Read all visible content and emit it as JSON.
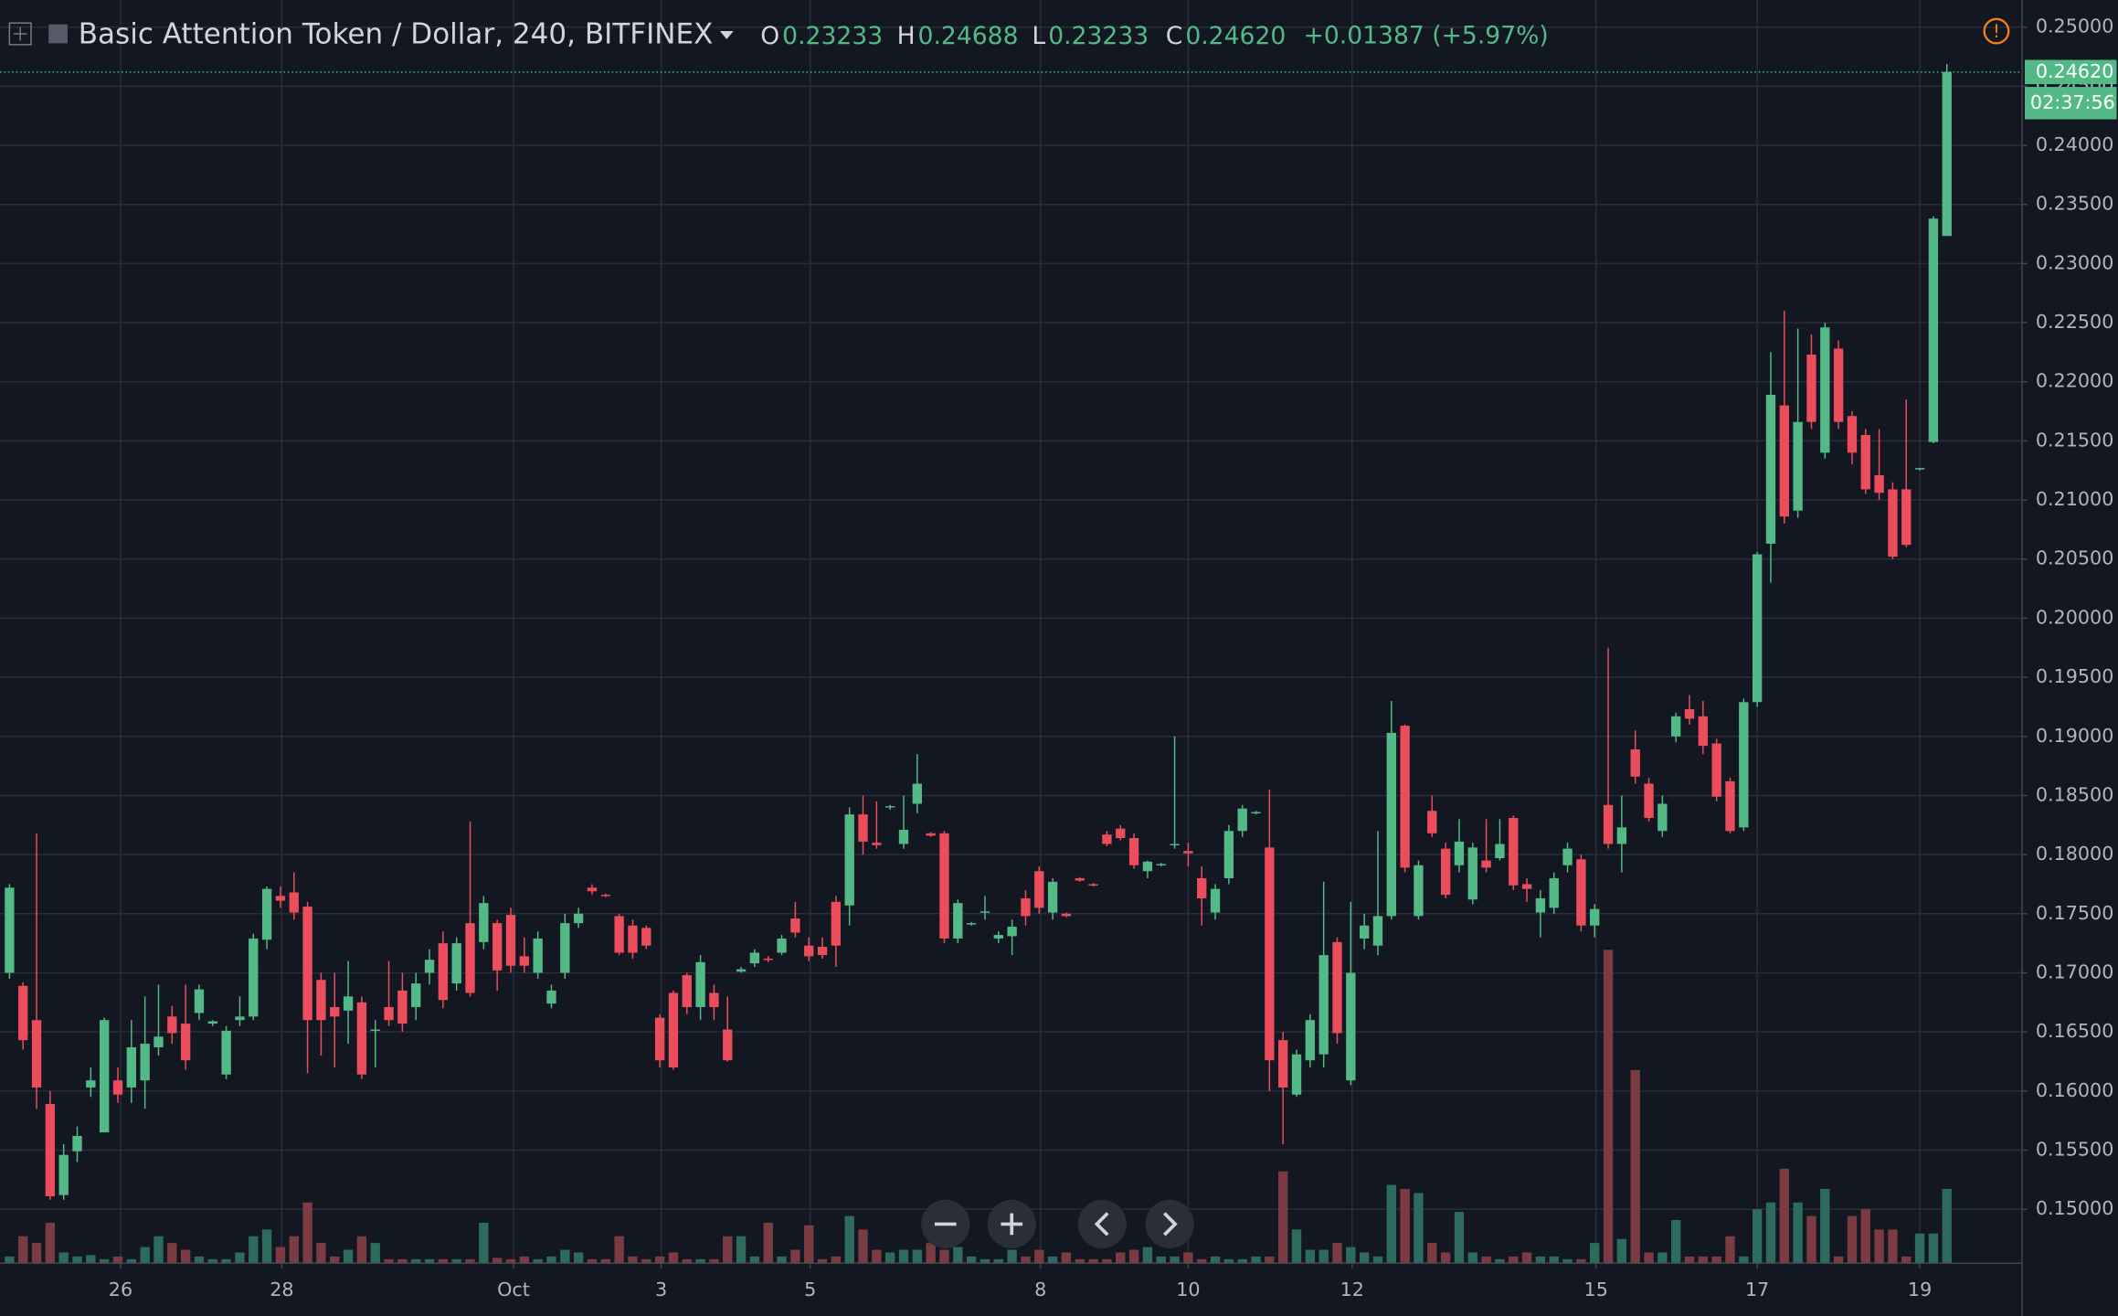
{
  "chart_data": {
    "type": "candlestick",
    "title": "Basic Attention Token / Dollar, 240, BITFINEX",
    "ohlc_legend": [
      {
        "key": "O",
        "value": "0.23233"
      },
      {
        "key": "H",
        "value": "0.24688"
      },
      {
        "key": "L",
        "value": "0.23233"
      },
      {
        "key": "C",
        "value": "0.24620"
      }
    ],
    "change": "+0.01387 (+5.97%)",
    "open": [
      0.17,
      0.1689,
      0.166,
      0.1589,
      0.1512,
      0.1549,
      0.1603,
      0.1565,
      0.1609,
      0.1603,
      0.1609,
      0.1637,
      0.1663,
      0.1657,
      0.1666,
      0.1657,
      0.1614,
      0.166,
      0.1663,
      0.1728,
      0.1765,
      0.1768,
      0.1756,
      0.1694,
      0.1671,
      0.1668,
      0.1675,
      0.1651,
      0.1671,
      0.1685,
      0.1671,
      0.17,
      0.1725,
      0.1691,
      0.1742,
      0.1726,
      0.1742,
      0.1749,
      0.1714,
      0.17,
      0.1674,
      0.17,
      0.1742,
      0.1772,
      0.1766,
      0.1748,
      0.174,
      0.1738,
      0.1662,
      0.1683,
      0.1698,
      0.1671,
      0.1683,
      0.1652,
      0.1701,
      0.1708,
      0.1712,
      0.1717,
      0.1746,
      0.1723,
      0.1722,
      0.176,
      0.1757,
      0.1834,
      0.181,
      0.184,
      0.1809,
      0.1843,
      0.1818,
      0.1818,
      0.1729,
      0.1741,
      0.1751,
      0.1729,
      0.1731,
      0.1763,
      0.1786,
      0.1751,
      0.175,
      0.178,
      0.1775,
      0.1817,
      0.1822,
      0.1814,
      0.1786,
      0.1791,
      0.1808,
      0.1803,
      0.178,
      0.1751,
      0.178,
      0.182,
      0.1835,
      0.1806,
      0.1643,
      0.1597,
      0.1626,
      0.1631,
      0.1726,
      0.1609,
      0.1729,
      0.1723,
      0.1748,
      0.1909,
      0.1748,
      0.1837,
      0.1805,
      0.1791,
      0.1762,
      0.1795,
      0.1797,
      0.1831,
      0.1775,
      0.1751,
      0.1755,
      0.1791,
      0.1796,
      0.174,
      0.1842,
      0.1809,
      0.1889,
      0.186,
      0.182,
      0.19,
      0.1923,
      0.1917,
      0.1894,
      0.1862,
      0.1823,
      0.1929,
      0.2063,
      0.218,
      0.2091,
      0.2223,
      0.214,
      0.2228,
      0.2171,
      0.2155,
      0.2121,
      0.2109,
      0.2109,
      0.2126,
      0.2149,
      0.23233
    ],
    "high": [
      0.1775,
      0.1692,
      0.1818,
      0.16,
      0.1555,
      0.157,
      0.162,
      0.1662,
      0.162,
      0.166,
      0.168,
      0.169,
      0.1672,
      0.169,
      0.169,
      0.166,
      0.1655,
      0.168,
      0.1733,
      0.1773,
      0.1773,
      0.1785,
      0.176,
      0.17,
      0.17,
      0.171,
      0.168,
      0.166,
      0.171,
      0.17,
      0.17,
      0.172,
      0.1735,
      0.173,
      0.1828,
      0.1765,
      0.1745,
      0.1755,
      0.173,
      0.1735,
      0.169,
      0.175,
      0.1755,
      0.1775,
      0.1767,
      0.175,
      0.1745,
      0.174,
      0.1665,
      0.1685,
      0.17,
      0.1715,
      0.169,
      0.168,
      0.1705,
      0.172,
      0.1714,
      0.1732,
      0.176,
      0.173,
      0.173,
      0.1765,
      0.184,
      0.185,
      0.1845,
      0.1842,
      0.185,
      0.1885,
      0.1819,
      0.182,
      0.1762,
      0.1743,
      0.1765,
      0.1735,
      0.1745,
      0.177,
      0.179,
      0.178,
      0.1751,
      0.1781,
      0.1776,
      0.182,
      0.1825,
      0.1818,
      0.1795,
      0.1793,
      0.19,
      0.181,
      0.179,
      0.1775,
      0.1825,
      0.1842,
      0.1837,
      0.1855,
      0.165,
      0.1635,
      0.1665,
      0.1777,
      0.173,
      0.176,
      0.175,
      0.182,
      0.193,
      0.191,
      0.1795,
      0.185,
      0.181,
      0.183,
      0.181,
      0.183,
      0.183,
      0.1833,
      0.178,
      0.177,
      0.1785,
      0.181,
      0.18,
      0.1758,
      0.1975,
      0.185,
      0.1905,
      0.1865,
      0.185,
      0.192,
      0.1935,
      0.193,
      0.1898,
      0.1865,
      0.1932,
      0.2056,
      0.2225,
      0.226,
      0.2245,
      0.224,
      0.225,
      0.2235,
      0.2175,
      0.216,
      0.216,
      0.2115,
      0.2185,
      0.2127,
      0.234,
      0.24688
    ],
    "low": [
      0.1695,
      0.1635,
      0.1585,
      0.1508,
      0.1508,
      0.154,
      0.1595,
      0.1565,
      0.159,
      0.159,
      0.1585,
      0.163,
      0.164,
      0.1618,
      0.166,
      0.1655,
      0.161,
      0.1655,
      0.166,
      0.172,
      0.1755,
      0.1745,
      0.1615,
      0.163,
      0.162,
      0.164,
      0.161,
      0.162,
      0.1655,
      0.165,
      0.166,
      0.169,
      0.167,
      0.1685,
      0.168,
      0.172,
      0.1685,
      0.17,
      0.17,
      0.1695,
      0.167,
      0.1695,
      0.1738,
      0.1766,
      0.1764,
      0.1715,
      0.1712,
      0.172,
      0.162,
      0.1618,
      0.1665,
      0.166,
      0.166,
      0.1625,
      0.17,
      0.1705,
      0.1709,
      0.1715,
      0.173,
      0.171,
      0.1712,
      0.1705,
      0.174,
      0.18,
      0.1805,
      0.1838,
      0.1805,
      0.1835,
      0.1815,
      0.1725,
      0.1725,
      0.174,
      0.1745,
      0.1725,
      0.1715,
      0.174,
      0.175,
      0.1745,
      0.1747,
      0.1777,
      0.1773,
      0.1807,
      0.1812,
      0.1788,
      0.178,
      0.179,
      0.1805,
      0.179,
      0.174,
      0.1745,
      0.1775,
      0.1815,
      0.1834,
      0.16,
      0.1555,
      0.1595,
      0.162,
      0.162,
      0.164,
      0.1605,
      0.172,
      0.1715,
      0.1745,
      0.1785,
      0.1745,
      0.1815,
      0.1763,
      0.1785,
      0.1758,
      0.1785,
      0.1795,
      0.177,
      0.176,
      0.173,
      0.175,
      0.1785,
      0.1735,
      0.173,
      0.1805,
      0.1785,
      0.186,
      0.1828,
      0.1815,
      0.1895,
      0.191,
      0.1885,
      0.1845,
      0.1818,
      0.182,
      0.1925,
      0.203,
      0.208,
      0.2085,
      0.216,
      0.2135,
      0.216,
      0.213,
      0.2105,
      0.21,
      0.205,
      0.206,
      0.2125,
      0.2148,
      0.23233
    ],
    "close": [
      0.1772,
      0.1643,
      0.1603,
      0.1511,
      0.1546,
      0.1562,
      0.1609,
      0.166,
      0.1597,
      0.1637,
      0.164,
      0.1646,
      0.1649,
      0.1626,
      0.1686,
      0.1659,
      0.1651,
      0.1663,
      0.1729,
      0.1771,
      0.1761,
      0.1751,
      0.166,
      0.166,
      0.1663,
      0.168,
      0.1614,
      0.1652,
      0.166,
      0.1657,
      0.1691,
      0.1711,
      0.1677,
      0.1725,
      0.1683,
      0.1759,
      0.1702,
      0.1706,
      0.1706,
      0.1729,
      0.1685,
      0.1742,
      0.175,
      0.1769,
      0.1765,
      0.1717,
      0.1717,
      0.1723,
      0.1626,
      0.162,
      0.1671,
      0.1709,
      0.1671,
      0.1626,
      0.1703,
      0.1717,
      0.1711,
      0.1729,
      0.1734,
      0.1714,
      0.1715,
      0.1723,
      0.1834,
      0.1811,
      0.1808,
      0.1841,
      0.1821,
      0.186,
      0.1816,
      0.1729,
      0.1759,
      0.1742,
      0.1752,
      0.1732,
      0.1739,
      0.1748,
      0.1755,
      0.1777,
      0.1748,
      0.1778,
      0.1774,
      0.1809,
      0.1814,
      0.1791,
      0.1794,
      0.1792,
      0.1809,
      0.1801,
      0.1763,
      0.1771,
      0.182,
      0.1839,
      0.1836,
      0.1626,
      0.1603,
      0.1631,
      0.166,
      0.1715,
      0.1649,
      0.17,
      0.174,
      0.1748,
      0.1903,
      0.1789,
      0.1791,
      0.1818,
      0.1766,
      0.1811,
      0.1806,
      0.1789,
      0.1809,
      0.1774,
      0.1771,
      0.1763,
      0.178,
      0.1805,
      0.174,
      0.1754,
      0.1809,
      0.1823,
      0.1866,
      0.1831,
      0.1843,
      0.1917,
      0.1915,
      0.1892,
      0.1849,
      0.182,
      0.1929,
      0.2054,
      0.2189,
      0.2086,
      0.2166,
      0.2166,
      0.2246,
      0.2166,
      0.214,
      0.2109,
      0.2106,
      0.2052,
      0.2062,
      0.2127,
      0.2338,
      0.2462
    ],
    "volume": [
      5,
      20,
      15,
      30,
      8,
      5,
      6,
      3,
      5,
      3,
      12,
      20,
      15,
      10,
      5,
      3,
      3,
      8,
      20,
      25,
      12,
      20,
      45,
      15,
      5,
      10,
      20,
      15,
      3,
      3,
      3,
      3,
      3,
      3,
      3,
      30,
      4,
      3,
      5,
      3,
      5,
      10,
      8,
      3,
      3,
      20,
      5,
      3,
      5,
      8,
      3,
      3,
      3,
      20,
      20,
      5,
      30,
      5,
      10,
      28,
      3,
      5,
      35,
      25,
      10,
      8,
      10,
      10,
      15,
      10,
      12,
      5,
      3,
      3,
      10,
      5,
      10,
      5,
      8,
      3,
      3,
      3,
      8,
      10,
      12,
      5,
      5,
      8,
      3,
      5,
      3,
      3,
      5,
      5,
      68,
      25,
      10,
      10,
      15,
      12,
      8,
      5,
      58,
      55,
      52,
      15,
      8,
      38,
      8,
      5,
      3,
      5,
      8,
      5,
      5,
      3,
      3,
      15,
      232,
      18,
      143,
      8,
      8,
      32,
      5,
      5,
      5,
      20,
      5,
      40,
      45,
      70,
      45,
      35,
      55,
      5,
      35,
      40,
      25,
      25,
      5,
      22,
      22,
      55
    ],
    "colors": {
      "up": "#53b987",
      "down": "#eb4d5c",
      "up_volume": "#2d6b5e",
      "down_volume": "#7c3b43"
    },
    "ylim": [
      0.14543,
      0.25229
    ],
    "yticks": [
      {
        "value": 0.15,
        "label": "0.15000"
      },
      {
        "value": 0.155,
        "label": "0.15500"
      },
      {
        "value": 0.16,
        "label": "0.16000"
      },
      {
        "value": 0.165,
        "label": "0.16500"
      },
      {
        "value": 0.17,
        "label": "0.17000"
      },
      {
        "value": 0.175,
        "label": "0.17500"
      },
      {
        "value": 0.18,
        "label": "0.18000"
      },
      {
        "value": 0.185,
        "label": "0.18500"
      },
      {
        "value": 0.19,
        "label": "0.19000"
      },
      {
        "value": 0.195,
        "label": "0.19500"
      },
      {
        "value": 0.2,
        "label": "0.20000"
      },
      {
        "value": 0.205,
        "label": "0.20500"
      },
      {
        "value": 0.21,
        "label": "0.21000"
      },
      {
        "value": 0.215,
        "label": "0.21500"
      },
      {
        "value": 0.22,
        "label": "0.22000"
      },
      {
        "value": 0.225,
        "label": "0.22500"
      },
      {
        "value": 0.23,
        "label": "0.23000"
      },
      {
        "value": 0.235,
        "label": "0.23500"
      },
      {
        "value": 0.24,
        "label": "0.24000"
      },
      {
        "value": 0.245,
        "label": "0.24500"
      },
      {
        "value": 0.25,
        "label": "0.25000"
      }
    ],
    "xlim": [
      -0.7,
      148.55
    ],
    "xticks": [
      {
        "value": 8.2,
        "label": "26"
      },
      {
        "value": 20.1,
        "label": "28"
      },
      {
        "value": 37.2,
        "label": "Oct"
      },
      {
        "value": 48.1,
        "label": "3"
      },
      {
        "value": 59.1,
        "label": "5"
      },
      {
        "value": 76.1,
        "label": "8"
      },
      {
        "value": 87.0,
        "label": "10"
      },
      {
        "value": 99.1,
        "label": "12"
      },
      {
        "value": 117.1,
        "label": "15"
      },
      {
        "value": 129.0,
        "label": "17"
      },
      {
        "value": 141.0,
        "label": "19"
      }
    ],
    "grid": true,
    "last_price": {
      "value": 0.2462,
      "label": "0.24620"
    },
    "countdown": "02:37:56"
  }
}
